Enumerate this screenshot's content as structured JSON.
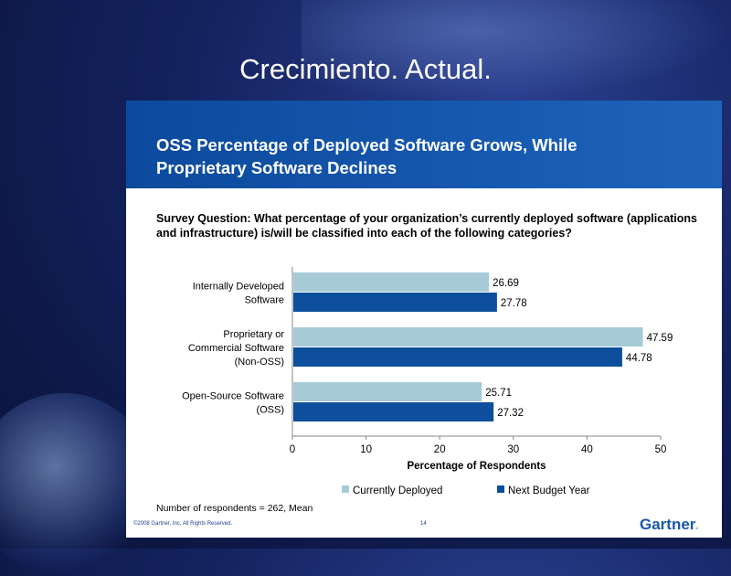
{
  "slide": {
    "title": "Crecimiento. Actual."
  },
  "panel": {
    "title_line1": "OSS Percentage of Deployed Software Grows, While",
    "title_line2": "Proprietary Software Declines",
    "question": "Survey Question: What percentage of your organization’s currently deployed software (applications and infrastructure) is/will be classified into each of the following categories?",
    "note": "Number of respondents = 262, Mean",
    "copyright": "©2008 Gartner, Inc. All Rights Reserved.",
    "page_number": "14",
    "logo_text": "Gartner",
    "logo_dot": "."
  },
  "chart_data": {
    "type": "bar",
    "orientation": "horizontal",
    "categories": [
      [
        "Internally Developed",
        "Software"
      ],
      [
        "Proprietary or",
        "Commercial Software",
        "(Non-OSS)"
      ],
      [
        "Open-Source Software",
        "(OSS)"
      ]
    ],
    "series": [
      {
        "name": "Currently Deployed",
        "color": "#a6cbd7",
        "values": [
          26.69,
          47.59,
          25.71
        ]
      },
      {
        "name": "Next Budget Year",
        "color": "#0d4f9c",
        "values": [
          27.78,
          44.78,
          27.32
        ]
      }
    ],
    "value_labels": [
      [
        "26.69",
        "47.59",
        "25.71"
      ],
      [
        "27.78",
        "44.78",
        "27.32"
      ]
    ],
    "xlabel": "Percentage of Respondents",
    "xlim": [
      0,
      50
    ],
    "xticks": [
      0,
      10,
      20,
      30,
      40,
      50
    ],
    "grid": false,
    "legend_position": "bottom"
  }
}
